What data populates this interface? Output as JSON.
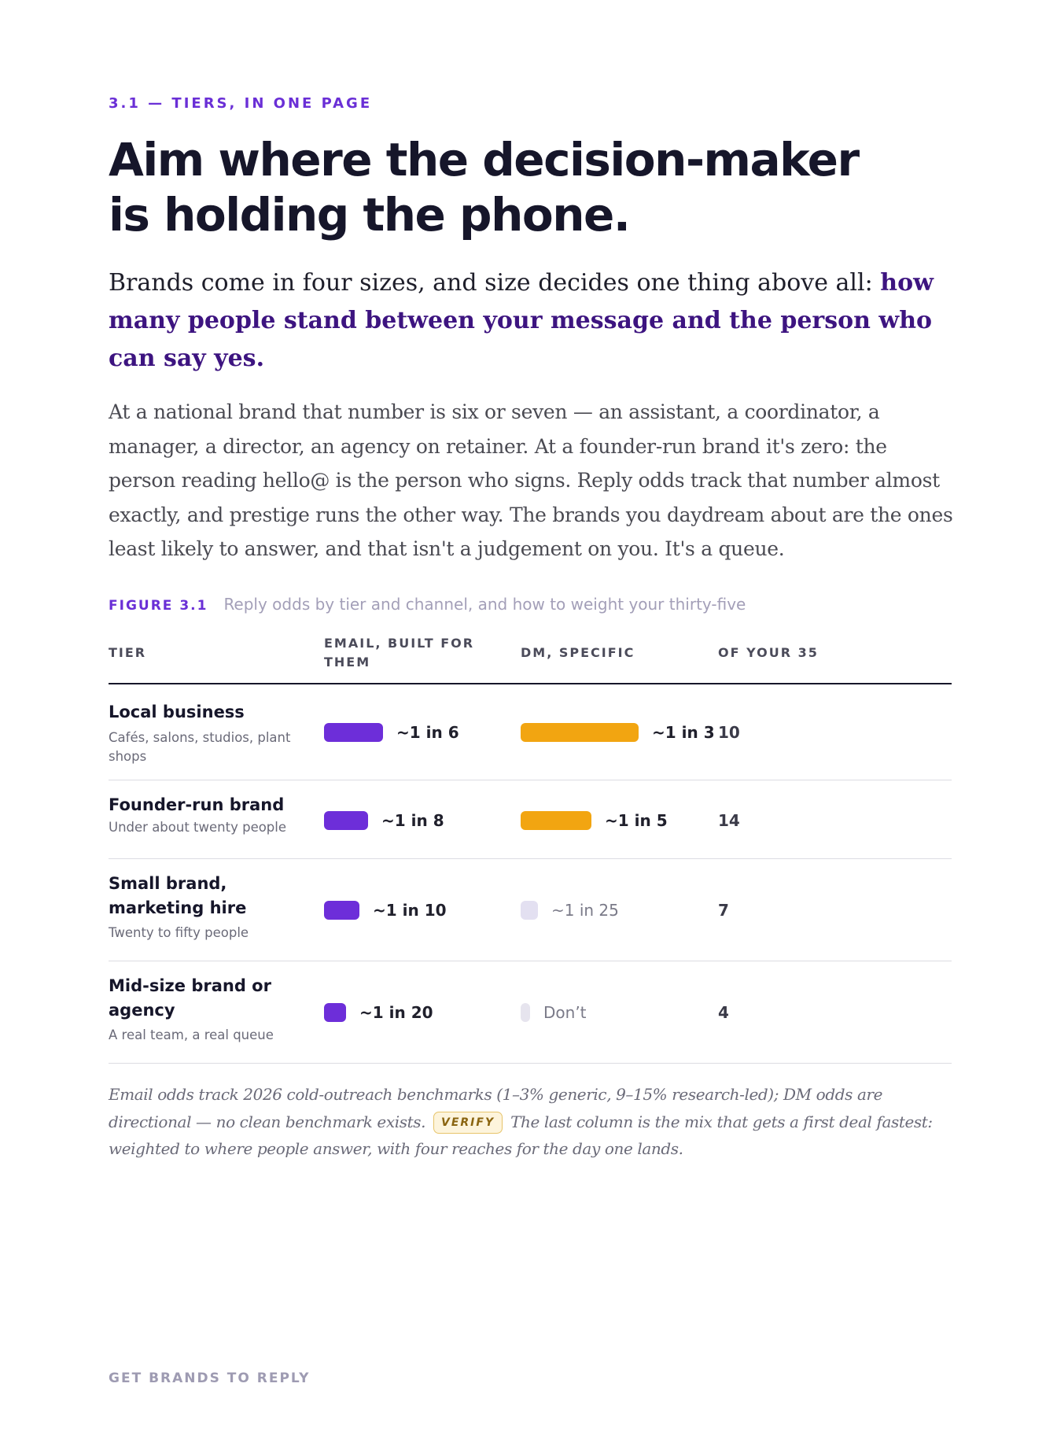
{
  "section_label": "3.1 — TIERS, IN ONE PAGE",
  "headline": {
    "line1": "Aim where the decision-maker",
    "line2": "is holding the phone."
  },
  "lede": {
    "plain": "Brands come in four sizes, and size decides one thing above all: ",
    "emphasis": "how many people stand between your message and the person who can say yes."
  },
  "body": "At a national brand that number is six or seven — an assistant, a coordinator, a manager, a director, an agency on retainer. At a founder-run brand it's zero: the person reading hello@ is the person who signs. Reply odds track that number almost exactly, and prestige runs the other way. The brands you daydream about are the ones least likely to answer, and that isn't a judgement on you. It's a queue.",
  "figure": {
    "label": "FIGURE 3.1",
    "title": "Reply odds by tier and channel, and how to weight your thirty-five"
  },
  "table": {
    "headers": {
      "tier": "TIER",
      "email": "EMAIL, BUILT FOR THEM",
      "dm": "DM, SPECIFIC",
      "mix": "OF YOUR 35"
    },
    "rows": [
      {
        "name": "Local business",
        "sub": "Cafés, salons, studios, plant shops",
        "email": {
          "label": "~1 in 6",
          "odds": 0.1667
        },
        "dm": {
          "label": "~1 in 3",
          "odds": 0.3333,
          "style": "strong"
        },
        "mix": "10"
      },
      {
        "name": "Founder-run brand",
        "sub": "Under about twenty people",
        "email": {
          "label": "~1 in 8",
          "odds": 0.125
        },
        "dm": {
          "label": "~1 in 5",
          "odds": 0.2,
          "style": "strong"
        },
        "mix": "14"
      },
      {
        "name": "Small brand, marketing hire",
        "sub": "Twenty to fifty people",
        "email": {
          "label": "~1 in 10",
          "odds": 0.1
        },
        "dm": {
          "label": "~1 in 25",
          "odds": 0.04,
          "style": "weak"
        },
        "mix": "7"
      },
      {
        "name": "Mid-size brand or agency",
        "sub": "A real team, a real queue",
        "email": {
          "label": "~1 in 20",
          "odds": 0.05
        },
        "dm": {
          "label": "Don’t",
          "odds": 0,
          "style": "none"
        },
        "mix": "4"
      }
    ]
  },
  "footnote": {
    "part1": "Email odds track 2026 cold-outreach benchmarks (1–3% generic, 9–15% research-led); DM odds are directional — no clean benchmark exists.",
    "badge": "VERIFY",
    "part2": "The last column is the mix that gets a first deal fastest: weighted to where people answer, with four reaches for the day one lands."
  },
  "colors": {
    "accent": "#6a2fd6",
    "email_bar": "#6d2ed9",
    "dm_bar": "#f2a511",
    "dm_bar_weak": "#e3e0f1",
    "emphasis_text": "#3d1480"
  },
  "footer": "GET BRANDS TO REPLY"
}
